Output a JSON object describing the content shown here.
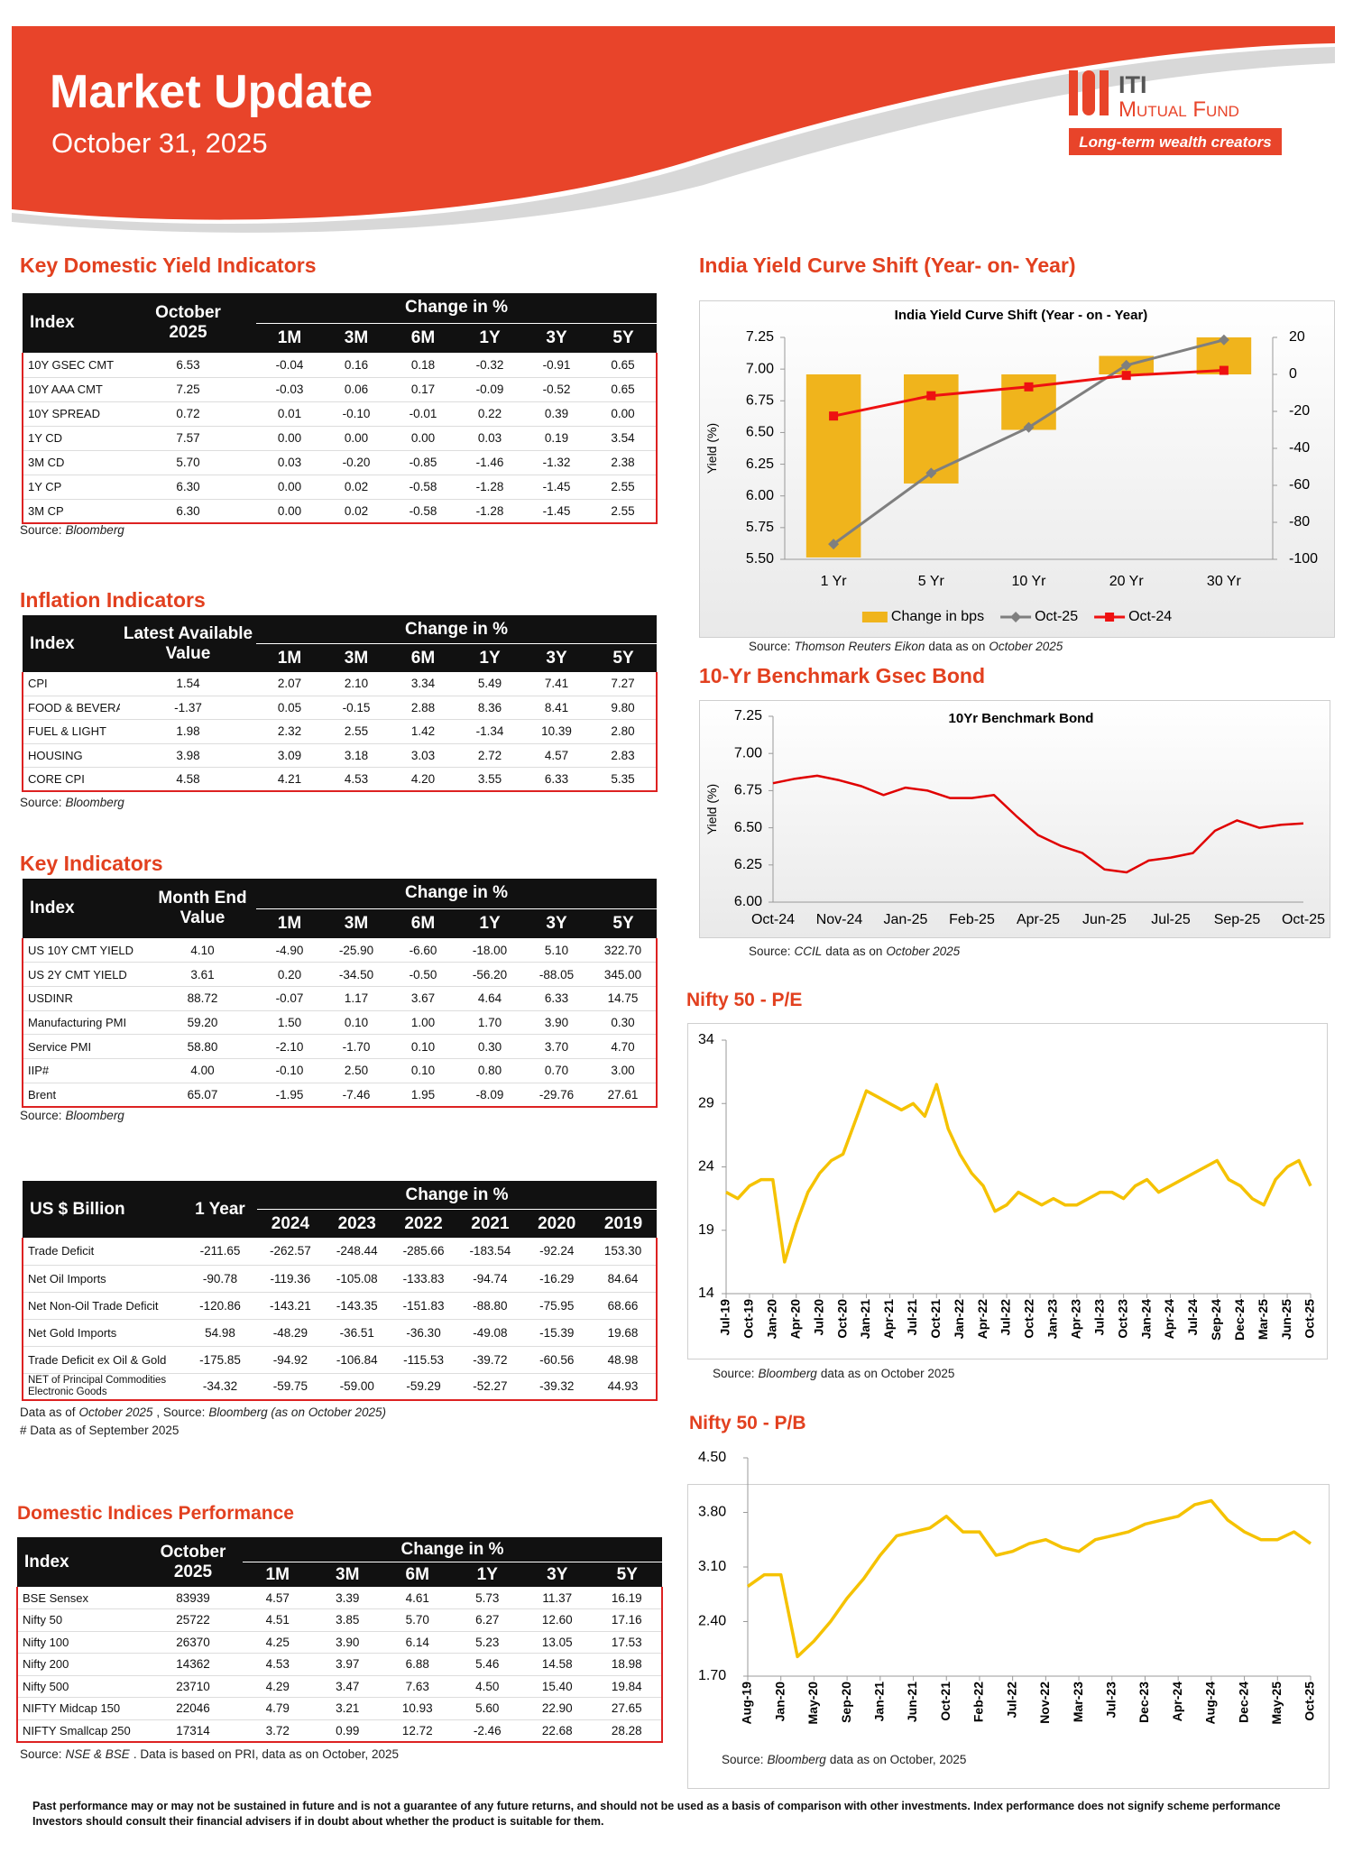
{
  "header": {
    "title": "Market Update",
    "date": "October 31, 2025",
    "brand": "ITI",
    "brand_sub": "Mutual Fund",
    "tagline": "Long-term wealth creators"
  },
  "yield_table": {
    "title": "Key Domestic Yield Indicators",
    "head": {
      "first": "Index",
      "second": [
        "October",
        "2025"
      ],
      "group": "Change in %",
      "cols": [
        "1M",
        "3M",
        "6M",
        "1Y",
        "3Y",
        "5Y"
      ]
    },
    "rows": [
      [
        "10Y GSEC CMT",
        "6.53",
        "-0.04",
        "0.16",
        "0.18",
        "-0.32",
        "-0.91",
        "0.65"
      ],
      [
        "10Y AAA CMT",
        "7.25",
        "-0.03",
        "0.06",
        "0.17",
        "-0.09",
        "-0.52",
        "0.65"
      ],
      [
        "10Y SPREAD",
        "0.72",
        "0.01",
        "-0.10",
        "-0.01",
        "0.22",
        "0.39",
        "0.00"
      ],
      [
        "1Y CD",
        "7.57",
        "0.00",
        "0.00",
        "0.00",
        "0.03",
        "0.19",
        "3.54"
      ],
      [
        "3M CD",
        "5.70",
        "0.03",
        "-0.20",
        "-0.85",
        "-1.46",
        "-1.32",
        "2.38"
      ],
      [
        "1Y CP",
        "6.30",
        "0.00",
        "0.02",
        "-0.58",
        "-1.28",
        "-1.45",
        "2.55"
      ],
      [
        "3M CP",
        "6.30",
        "0.00",
        "0.02",
        "-0.58",
        "-1.28",
        "-1.45",
        "2.55"
      ]
    ],
    "source": [
      "Source:",
      "Bloomberg"
    ]
  },
  "inflation_table": {
    "title": "Inflation Indicators",
    "head": {
      "first": "Index",
      "second": [
        "Latest Available",
        "Value"
      ],
      "group": "Change in %",
      "cols": [
        "1M",
        "3M",
        "6M",
        "1Y",
        "3Y",
        "5Y"
      ]
    },
    "rows": [
      [
        "CPI",
        "1.54",
        "2.07",
        "2.10",
        "3.34",
        "5.49",
        "7.41",
        "7.27"
      ],
      [
        "FOOD & BEVERAGES",
        "-1.37",
        "0.05",
        "-0.15",
        "2.88",
        "8.36",
        "8.41",
        "9.80"
      ],
      [
        "FUEL & LIGHT",
        "1.98",
        "2.32",
        "2.55",
        "1.42",
        "-1.34",
        "10.39",
        "2.80"
      ],
      [
        "HOUSING",
        "3.98",
        "3.09",
        "3.18",
        "3.03",
        "2.72",
        "4.57",
        "2.83"
      ],
      [
        "CORE CPI",
        "4.58",
        "4.21",
        "4.53",
        "4.20",
        "3.55",
        "6.33",
        "5.35"
      ]
    ],
    "source": [
      "Source:",
      "Bloomberg"
    ]
  },
  "indicators_table": {
    "title": "Key Indicators",
    "head": {
      "first": "Index",
      "second": [
        "Month End",
        "Value"
      ],
      "group": "Change in %",
      "cols": [
        "1M",
        "3M",
        "6M",
        "1Y",
        "3Y",
        "5Y"
      ]
    },
    "rows": [
      [
        "US 10Y CMT YIELD",
        "4.10",
        "-4.90",
        "-25.90",
        "-6.60",
        "-18.00",
        "5.10",
        "322.70"
      ],
      [
        "US 2Y CMT YIELD",
        "3.61",
        "0.20",
        "-34.50",
        "-0.50",
        "-56.20",
        "-88.05",
        "345.00"
      ],
      [
        "USDINR",
        "88.72",
        "-0.07",
        "1.17",
        "3.67",
        "4.64",
        "6.33",
        "14.75"
      ],
      [
        "Manufacturing PMI",
        "59.20",
        "1.50",
        "0.10",
        "1.00",
        "1.70",
        "3.90",
        "0.30"
      ],
      [
        "Service PMI",
        "58.80",
        "-2.10",
        "-1.70",
        "0.10",
        "0.30",
        "3.70",
        "4.70"
      ],
      [
        "IIP#",
        "4.00",
        "-0.10",
        "2.50",
        "0.10",
        "0.80",
        "0.70",
        "3.00"
      ],
      [
        "Brent",
        "65.07",
        "-1.95",
        "-7.46",
        "1.95",
        "-8.09",
        "-29.76",
        "27.61"
      ]
    ],
    "source": [
      "Source:",
      "Bloomberg"
    ]
  },
  "trade_table": {
    "head": {
      "first": "US $ Billion",
      "second": [
        "1 Year"
      ],
      "group": "Change in %",
      "cols": [
        "2024",
        "2023",
        "2022",
        "2021",
        "2020",
        "2019"
      ]
    },
    "rows": [
      [
        "Trade Deficit",
        "-211.65",
        "-262.57",
        "-248.44",
        "-285.66",
        "-183.54",
        "-92.24",
        "153.30"
      ],
      [
        "Net Oil Imports",
        "-90.78",
        "-119.36",
        "-105.08",
        "-133.83",
        "-94.74",
        "-16.29",
        "84.64"
      ],
      [
        "Net Non-Oil Trade Deficit",
        "-120.86",
        "-143.21",
        "-143.35",
        "-151.83",
        "-88.80",
        "-75.95",
        "68.66"
      ],
      [
        "Net Gold Imports",
        "54.98",
        "-48.29",
        "-36.51",
        "-36.30",
        "-49.08",
        "-15.39",
        "19.68"
      ],
      [
        "Trade Deficit ex Oil & Gold",
        "-175.85",
        "-94.92",
        "-106.84",
        "-115.53",
        "-39.72",
        "-60.56",
        "48.98"
      ],
      [
        "NET of Principal Commodities Electronic Goods",
        "-34.32",
        "-59.75",
        "-59.00",
        "-59.29",
        "-52.27",
        "-39.32",
        "44.93"
      ]
    ],
    "source": [
      "Data as of",
      "October 2025",
      ", Source:",
      "Bloomberg (as on October 2025)"
    ],
    "note": "# Data as of September 2025"
  },
  "indices_table": {
    "title": "Domestic Indices Performance",
    "head": {
      "first": "Index",
      "second": [
        "October",
        "2025"
      ],
      "group": "Change in %",
      "cols": [
        "1M",
        "3M",
        "6M",
        "1Y",
        "3Y",
        "5Y"
      ]
    },
    "rows": [
      [
        "BSE Sensex",
        "83939",
        "4.57",
        "3.39",
        "4.61",
        "5.73",
        "11.37",
        "16.19"
      ],
      [
        "Nifty 50",
        "25722",
        "4.51",
        "3.85",
        "5.70",
        "6.27",
        "12.60",
        "17.16"
      ],
      [
        "Nifty 100",
        "26370",
        "4.25",
        "3.90",
        "6.14",
        "5.23",
        "13.05",
        "17.53"
      ],
      [
        "Nifty 200",
        "14362",
        "4.53",
        "3.97",
        "6.88",
        "5.46",
        "14.58",
        "18.98"
      ],
      [
        "Nifty 500",
        "23710",
        "4.29",
        "3.47",
        "7.63",
        "4.50",
        "15.40",
        "19.84"
      ],
      [
        "NIFTY Midcap 150",
        "22046",
        "4.79",
        "3.21",
        "10.93",
        "5.60",
        "22.90",
        "27.65"
      ],
      [
        "NIFTY Smallcap 250",
        "17314",
        "3.72",
        "0.99",
        "12.72",
        "-2.46",
        "22.68",
        "28.28"
      ]
    ],
    "source": [
      "Source:",
      "NSE & BSE",
      ". Data is based on PRI, data as on October, 2025"
    ]
  },
  "disclaimer": "Past performance may or may not be sustained in future and is not a guarantee of any future returns, and should not be used as a basis of comparison with other investments. Index performance does not signify scheme performance Investors should consult their financial advisers if in doubt about whether the product is suitable for them.",
  "chart_data": [
    {
      "type": "combo",
      "heading": "India Yield Curve Shift (Year- on- Year)",
      "title": "India Yield Curve Shift (Year - on - Year)",
      "ylabel": "Yield (%)",
      "categories": [
        "1 Yr",
        "5 Yr",
        "10 Yr",
        "20 Yr",
        "30 Yr"
      ],
      "series": [
        {
          "name": "Change in bps",
          "type": "bar",
          "axis": "y2",
          "color": "#f0b41c",
          "values": [
            -99,
            -59,
            -30,
            10,
            20
          ]
        },
        {
          "name": "Oct-25",
          "type": "line",
          "marker": "diamond",
          "color": "#7f7f7f",
          "values": [
            5.62,
            6.18,
            6.54,
            7.03,
            7.23
          ]
        },
        {
          "name": "Oct-24",
          "type": "line",
          "marker": "square",
          "color": "#ee1111",
          "values": [
            6.63,
            6.79,
            6.86,
            6.95,
            6.99
          ]
        }
      ],
      "ylim": [
        5.5,
        7.25
      ],
      "yticks": [
        {
          "value": 5.5,
          "label": "5.50"
        },
        5.75,
        {
          "value": 6,
          "label": "6.00"
        },
        6.25,
        {
          "value": 6.5,
          "label": "6.50"
        },
        6.75,
        {
          "value": 7,
          "label": "7.00"
        },
        7.25
      ],
      "y2lim": [
        -100,
        20
      ],
      "y2ticks": [
        -100,
        -80,
        -60,
        -40,
        -20,
        0,
        20
      ],
      "legend": "bottom",
      "source": [
        "Source:",
        "Thomson Reuters Eikon",
        "data as on",
        "October 2025"
      ]
    },
    {
      "type": "line",
      "heading": "10-Yr Benchmark Gsec Bond",
      "title": "10Yr Benchmark Bond",
      "ylabel": "Yield (%)",
      "categories": [
        "Oct-24",
        null,
        null,
        "Nov-24",
        null,
        null,
        "Jan-25",
        null,
        null,
        "Feb-25",
        null,
        null,
        "Apr-25",
        null,
        null,
        "Jun-25",
        null,
        null,
        "Jul-25",
        null,
        null,
        "Sep-25",
        null,
        null,
        "Oct-25"
      ],
      "values": [
        6.8,
        6.83,
        6.85,
        6.82,
        6.78,
        6.72,
        6.77,
        6.75,
        6.7,
        6.7,
        6.72,
        6.58,
        6.45,
        6.38,
        6.33,
        6.22,
        6.2,
        6.28,
        6.3,
        6.33,
        6.48,
        6.55,
        6.5,
        6.52,
        6.53
      ],
      "color": "#e00000",
      "ylim": [
        6,
        7.25
      ],
      "yticks": [
        {
          "value": 6,
          "label": "6.00"
        },
        6.25,
        {
          "value": 6.5,
          "label": "6.50"
        },
        6.75,
        {
          "value": 7,
          "label": "7.00"
        },
        7.25
      ],
      "source": [
        "Source:",
        "CCIL",
        "data as on",
        "October 2025"
      ]
    },
    {
      "type": "line",
      "heading": "Nifty 50 - P/E",
      "categories": [
        "Jul-19",
        null,
        "Oct-19",
        null,
        "Jan-20",
        null,
        "Apr-20",
        null,
        "Jul-20",
        null,
        "Oct-20",
        null,
        "Jan-21",
        null,
        "Apr-21",
        null,
        "Jul-21",
        null,
        "Oct-21",
        null,
        "Jan-22",
        null,
        "Apr-22",
        null,
        "Jul-22",
        null,
        "Oct-22",
        null,
        "Jan-23",
        null,
        "Apr-23",
        null,
        "Jul-23",
        null,
        "Oct-23",
        null,
        "Jan-24",
        null,
        "Apr-24",
        null,
        "Jul-24",
        null,
        "Sep-24",
        null,
        "Dec-24",
        null,
        "Mar-25",
        null,
        "Jun-25",
        null,
        "Oct-25"
      ],
      "values": [
        22,
        21.5,
        22.5,
        23,
        23,
        16.5,
        19.5,
        22,
        23.5,
        24.5,
        25,
        27.5,
        30,
        29.5,
        29,
        28.5,
        29,
        28,
        30.5,
        27,
        25,
        23.5,
        22.5,
        20.5,
        21,
        22,
        21.5,
        21,
        21.5,
        21,
        21,
        21.5,
        22,
        22,
        21.5,
        22.5,
        23,
        22,
        22.5,
        23,
        23.5,
        24,
        24.5,
        23,
        22.5,
        21.5,
        21,
        23,
        24,
        24.5,
        22.5
      ],
      "color": "#f5c200",
      "ylim": [
        14,
        34
      ],
      "yticks": [
        14,
        19,
        24,
        29,
        34
      ],
      "source": [
        "Source:",
        "Bloomberg",
        "data as on October 2025"
      ]
    },
    {
      "type": "line",
      "heading": "Nifty 50 - P/B",
      "categories": [
        "Aug-19",
        null,
        "Jan-20",
        null,
        "May-20",
        null,
        "Sep-20",
        null,
        "Jan-21",
        null,
        "Jun-21",
        null,
        "Oct-21",
        null,
        "Feb-22",
        null,
        "Jul-22",
        null,
        "Nov-22",
        null,
        "Mar-23",
        null,
        "Jul-23",
        null,
        "Dec-23",
        null,
        "Apr-24",
        null,
        "Aug-24",
        null,
        "Dec-24",
        null,
        "May-25",
        null,
        "Oct-25"
      ],
      "values": [
        2.85,
        3,
        3,
        1.95,
        2.15,
        2.4,
        2.7,
        2.95,
        3.25,
        3.5,
        3.55,
        3.6,
        3.75,
        3.55,
        3.55,
        3.25,
        3.3,
        3.4,
        3.45,
        3.35,
        3.3,
        3.45,
        3.5,
        3.55,
        3.65,
        3.7,
        3.75,
        3.9,
        3.95,
        3.7,
        3.55,
        3.45,
        3.45,
        3.55,
        3.4
      ],
      "color": "#f5c200",
      "ylim": [
        1.7,
        4.5
      ],
      "yticks": [
        {
          "value": 1.7,
          "label": "1.70"
        },
        {
          "value": 2.4,
          "label": "2.40"
        },
        {
          "value": 3.1,
          "label": "3.10"
        },
        {
          "value": 3.8,
          "label": "3.80"
        },
        {
          "value": 4.5,
          "label": "4.50"
        }
      ],
      "source": [
        "Source:",
        "Bloomberg",
        "data as on October, 2025"
      ]
    }
  ]
}
